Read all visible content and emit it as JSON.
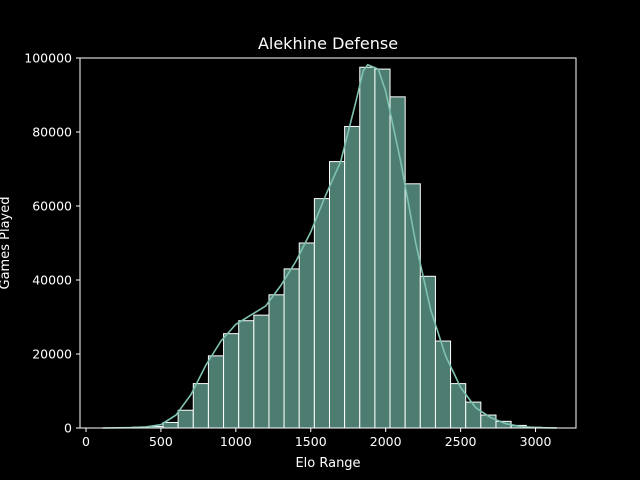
{
  "chart_data": {
    "type": "bar",
    "title": "Alekhine Defense",
    "xlabel": "Elo Range",
    "ylabel": "Games Played",
    "xlim": [
      -40,
      3270
    ],
    "ylim": [
      0,
      100000
    ],
    "xticks": [
      0,
      500,
      1000,
      1500,
      2000,
      2500,
      3000
    ],
    "yticks": [
      0,
      20000,
      40000,
      60000,
      80000,
      100000
    ],
    "xtick_labels": [
      "0",
      "500",
      "1000",
      "1500",
      "2000",
      "2500",
      "3000"
    ],
    "ytick_labels": [
      "0",
      "20000",
      "40000",
      "60000",
      "80000",
      "100000"
    ],
    "bin_start": 110,
    "bin_width": 101,
    "values": [
      0,
      0,
      200,
      400,
      1500,
      4800,
      12000,
      19500,
      25500,
      29000,
      30500,
      36000,
      43000,
      50000,
      62000,
      72000,
      81500,
      97500,
      97000,
      89500,
      66000,
      41000,
      23500,
      12000,
      7000,
      3500,
      1800,
      700,
      200,
      50
    ],
    "kde": [
      [
        110,
        0
      ],
      [
        300,
        100
      ],
      [
        400,
        300
      ],
      [
        500,
        900
      ],
      [
        600,
        3500
      ],
      [
        700,
        9000
      ],
      [
        800,
        17000
      ],
      [
        900,
        23500
      ],
      [
        1000,
        28000
      ],
      [
        1100,
        30500
      ],
      [
        1200,
        33000
      ],
      [
        1300,
        38500
      ],
      [
        1400,
        45000
      ],
      [
        1500,
        53000
      ],
      [
        1600,
        63000
      ],
      [
        1700,
        72000
      ],
      [
        1800,
        88000
      ],
      [
        1850,
        96500
      ],
      [
        1880,
        98200
      ],
      [
        1950,
        97000
      ],
      [
        2000,
        91000
      ],
      [
        2100,
        72000
      ],
      [
        2200,
        50000
      ],
      [
        2300,
        32000
      ],
      [
        2400,
        19500
      ],
      [
        2500,
        11000
      ],
      [
        2600,
        5500
      ],
      [
        2700,
        2800
      ],
      [
        2800,
        1200
      ],
      [
        2900,
        400
      ],
      [
        3000,
        100
      ],
      [
        3140,
        0
      ]
    ],
    "bar_color": "#4d7d71",
    "edge_color": "#ffffff",
    "line_color": "#7fc2b1"
  }
}
